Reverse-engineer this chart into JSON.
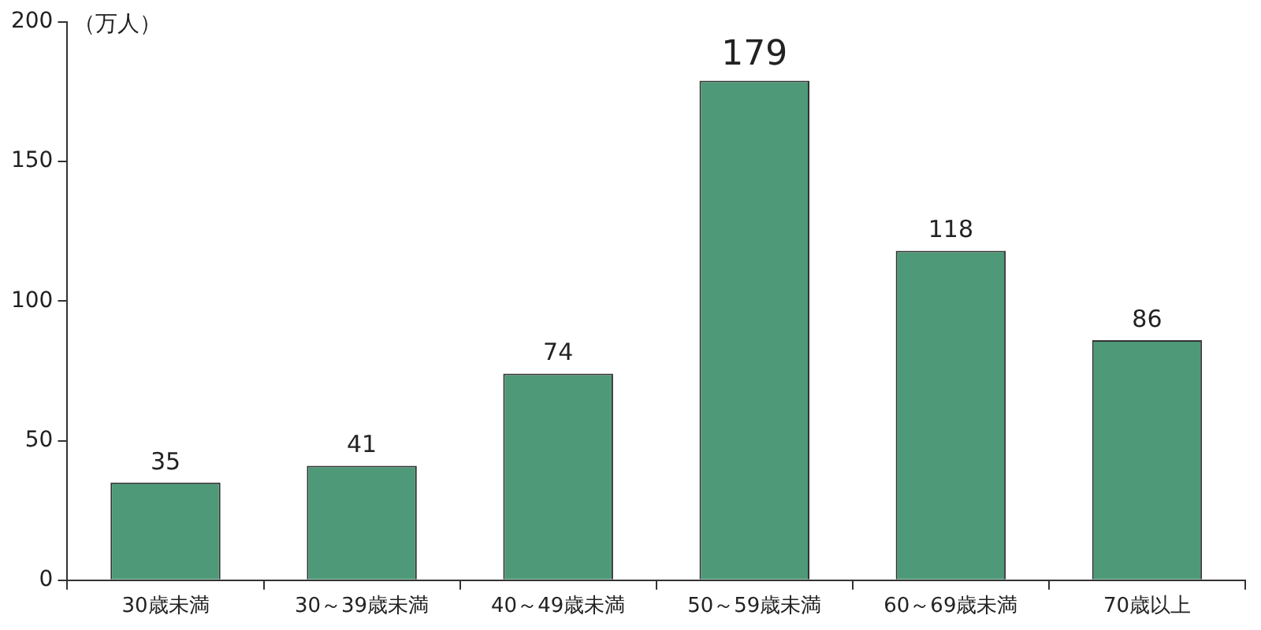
{
  "chart_data": {
    "type": "bar",
    "ylabel": "（万人）",
    "categories": [
      "30歳未満",
      "30～39歳未満",
      "40～49歳未満",
      "50～59歳未満",
      "60～69歳未満",
      "70歳以上"
    ],
    "values": [
      35,
      41,
      74,
      179,
      118,
      86
    ],
    "color": "#4e9a78",
    "ylim": [
      0,
      200
    ],
    "yticks": [
      0,
      50,
      100,
      150,
      200
    ],
    "grid": false,
    "data_labels": true,
    "legend": false
  }
}
